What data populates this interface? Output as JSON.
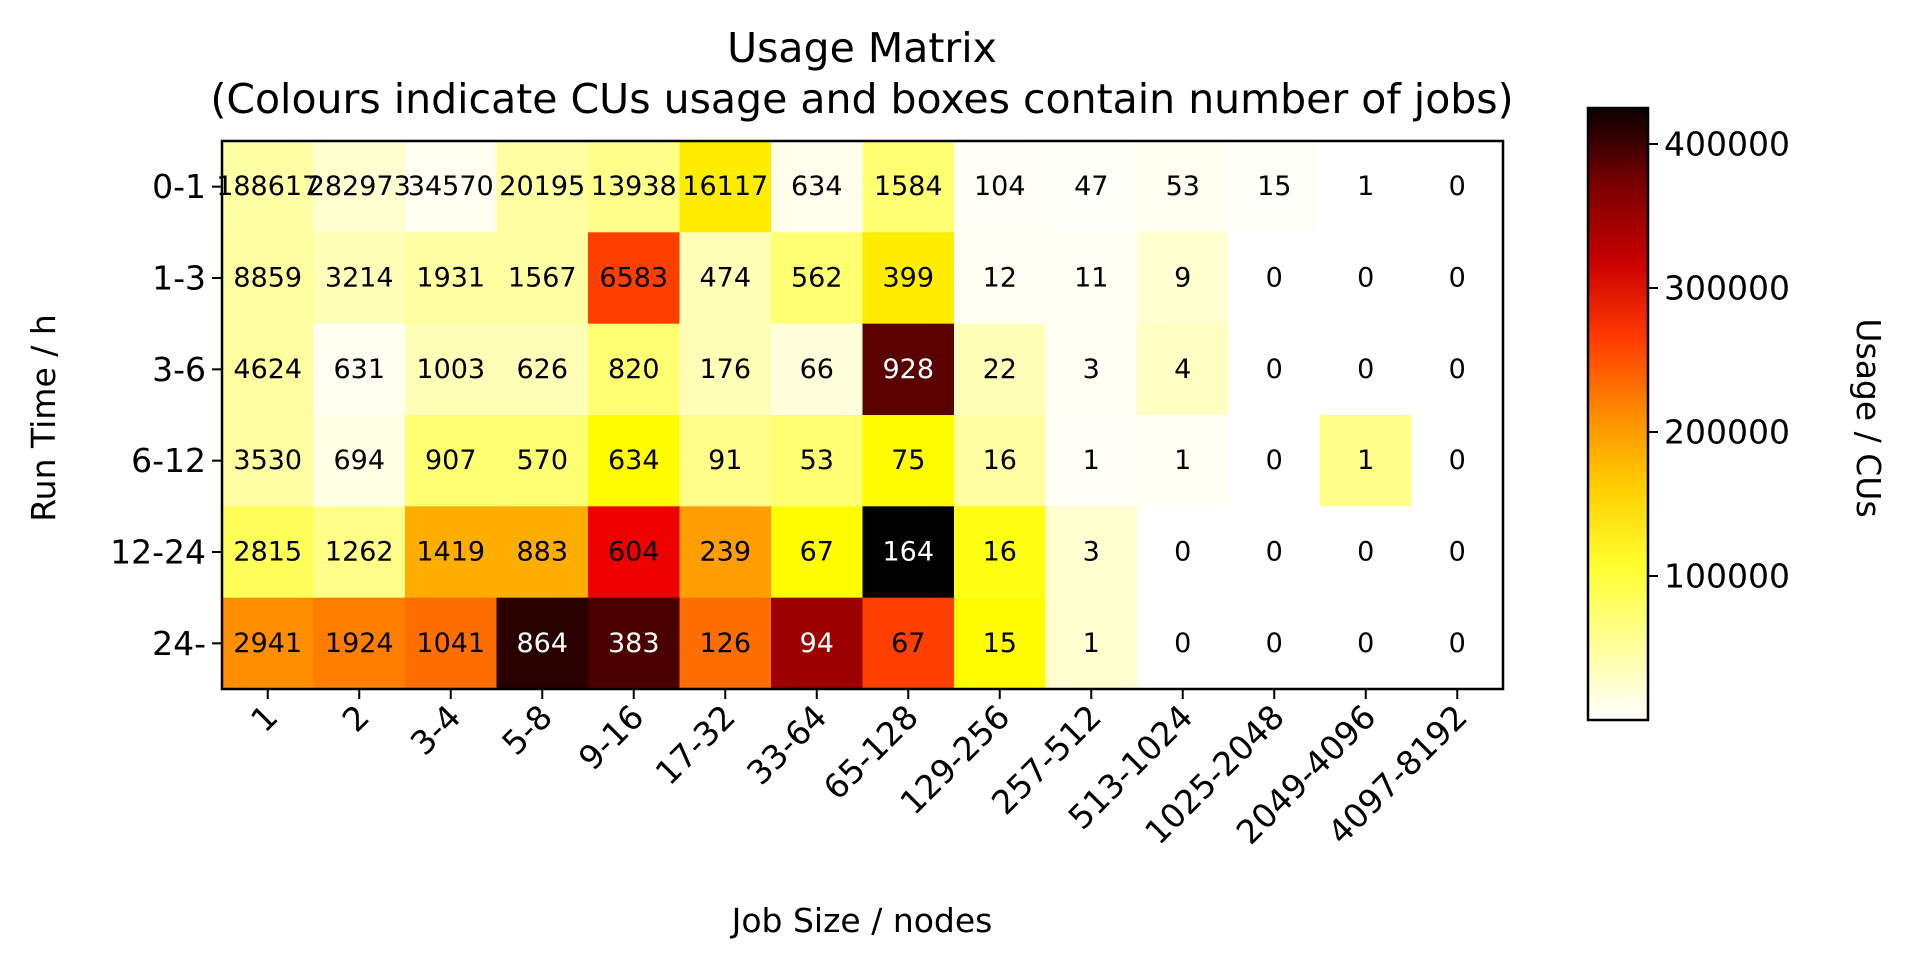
{
  "chart_data": {
    "type": "heatmap",
    "title": "Usage Matrix",
    "subtitle": "(Colours indicate CUs usage and boxes contain number of jobs)",
    "xlabel": "Job Size / nodes",
    "ylabel": "Run Time / h",
    "colorbar_label": "Usage / CUs",
    "colormap": "hot_r",
    "color_range": [
      0,
      425000
    ],
    "colorbar_ticks": [
      {
        "value": 100000,
        "label": "100000"
      },
      {
        "value": 200000,
        "label": "200000"
      },
      {
        "value": 300000,
        "label": "300000"
      },
      {
        "value": 400000,
        "label": "400000"
      }
    ],
    "x_categories": [
      "1",
      "2",
      "3-4",
      "5-8",
      "9-16",
      "17-32",
      "33-64",
      "65-128",
      "129-256",
      "257-512",
      "513-1024",
      "1025-2048",
      "2049-4096",
      "4097-8192"
    ],
    "y_categories": [
      "0-1",
      "1-3",
      "3-6",
      "6-12",
      "12-24",
      "24-"
    ],
    "jobs": [
      [
        "188617",
        "282973",
        "34570",
        "20195",
        "13938",
        "16117",
        "634",
        "1584",
        "104",
        "47",
        "53",
        "15",
        "1",
        "0"
      ],
      [
        "8859",
        "3214",
        "1931",
        "1567",
        "6583",
        "474",
        "562",
        "399",
        "12",
        "11",
        "9",
        "0",
        "0",
        "0"
      ],
      [
        "4624",
        "631",
        "1003",
        "626",
        "820",
        "176",
        "66",
        "928",
        "22",
        "3",
        "4",
        "0",
        "0",
        "0"
      ],
      [
        "3530",
        "694",
        "907",
        "570",
        "634",
        "91",
        "53",
        "75",
        "16",
        "1",
        "1",
        "0",
        "1",
        "0"
      ],
      [
        "2815",
        "1262",
        "1419",
        "883",
        "604",
        "239",
        "67",
        "164",
        "16",
        "3",
        "0",
        "0",
        "0",
        "0"
      ],
      [
        "2941",
        "1924",
        "1041",
        "864",
        "383",
        "126",
        "94",
        "67",
        "15",
        "1",
        "0",
        "0",
        "0",
        "0"
      ]
    ],
    "usage": [
      [
        38000,
        20000,
        6000,
        40000,
        50000,
        120000,
        8000,
        60000,
        4000,
        2000,
        6000,
        2000,
        0,
        0
      ],
      [
        40000,
        30000,
        40000,
        40000,
        230000,
        30000,
        60000,
        120000,
        5000,
        5000,
        20000,
        0,
        0,
        0
      ],
      [
        40000,
        6000,
        30000,
        30000,
        60000,
        30000,
        15000,
        370000,
        30000,
        5000,
        25000,
        0,
        0,
        0
      ],
      [
        40000,
        12000,
        60000,
        60000,
        110000,
        50000,
        60000,
        110000,
        40000,
        3000,
        5000,
        0,
        50000,
        0
      ],
      [
        70000,
        50000,
        160000,
        160000,
        280000,
        170000,
        110000,
        425000,
        100000,
        20000,
        0,
        0,
        0,
        0
      ],
      [
        180000,
        190000,
        200000,
        400000,
        380000,
        200000,
        330000,
        230000,
        110000,
        20000,
        0,
        0,
        0,
        0
      ]
    ]
  }
}
